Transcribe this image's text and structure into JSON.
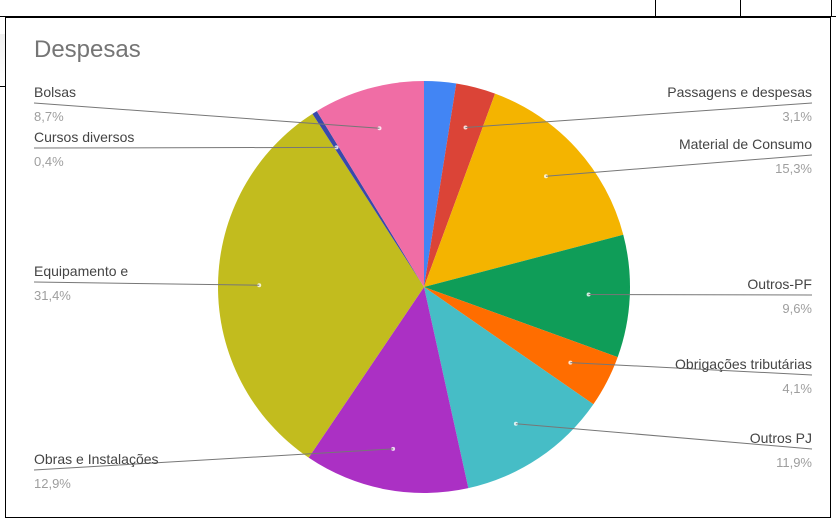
{
  "chart_data": {
    "type": "pie",
    "title": "Despesas",
    "slices": [
      {
        "label": "",
        "percent": "2,5%",
        "value": 2.5,
        "color": "#4285f4"
      },
      {
        "label": "Passagens e despesas",
        "percent": "3,1%",
        "value": 3.1,
        "color": "#db4437"
      },
      {
        "label": "Material de Consumo",
        "percent": "15,3%",
        "value": 15.3,
        "color": "#f4b400"
      },
      {
        "label": "Outros-PF",
        "percent": "9,6%",
        "value": 9.6,
        "color": "#0f9d58"
      },
      {
        "label": "Obrigações tributárias",
        "percent": "4,1%",
        "value": 4.1,
        "color": "#ff6d00"
      },
      {
        "label": "Outros PJ",
        "percent": "11,9%",
        "value": 11.9,
        "color": "#46bdc6"
      },
      {
        "label": "Obras e Instalações",
        "percent": "12,9%",
        "value": 12.9,
        "color": "#ab30c4"
      },
      {
        "label": "Equipamento e",
        "percent": "31,4%",
        "value": 31.4,
        "color": "#c2bc1e"
      },
      {
        "label": "Cursos diversos",
        "percent": "0,4%",
        "value": 0.4,
        "color": "#3949ab"
      },
      {
        "label": "Bolsas",
        "percent": "8,7%",
        "value": 8.7,
        "color": "#f06da5"
      }
    ],
    "legend": "none"
  }
}
